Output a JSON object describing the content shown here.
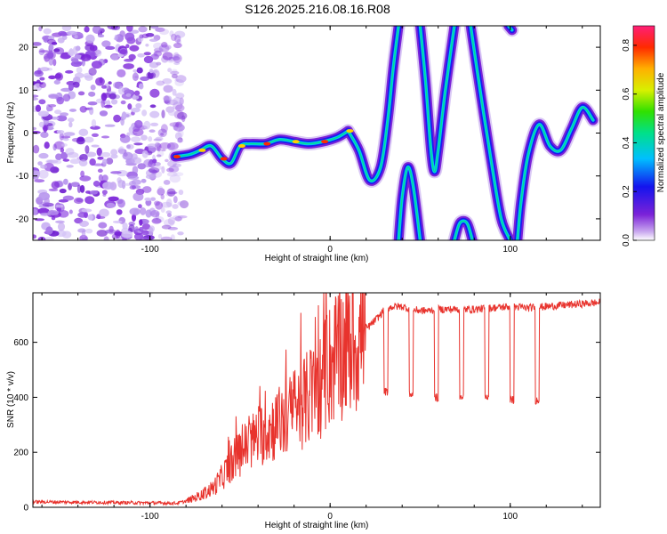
{
  "title": "S126.2025.216.08.16.R08",
  "colors": {
    "snr_line": "#e8332d",
    "frame": "#000000",
    "background": "#ffffff"
  },
  "chart_data": [
    {
      "type": "heatmap",
      "xlabel": "Height of straight line (km)",
      "ylabel": "Frequency (Hz)",
      "xlim": [
        -165,
        150
      ],
      "ylim": [
        -25,
        25
      ],
      "x_ticks": [
        -100,
        0,
        100
      ],
      "y_ticks": [
        -20,
        -10,
        0,
        10,
        20
      ],
      "colorbar": {
        "label": "Normalized spectral amplitude",
        "range": [
          0.0,
          0.88
        ],
        "ticks": [
          "0.0",
          "0.2",
          "0.4",
          "0.6",
          "0.8"
        ],
        "colormap": "rainbow (purple to red)"
      },
      "noise_region_x": [
        -165,
        -85
      ],
      "ridge": [
        {
          "x": -86,
          "y": -5.5
        },
        {
          "x": -78,
          "y": -5
        },
        {
          "x": -72,
          "y": -4
        },
        {
          "x": -66,
          "y": -3
        },
        {
          "x": -60,
          "y": -6
        },
        {
          "x": -55,
          "y": -7
        },
        {
          "x": -50,
          "y": -3
        },
        {
          "x": -44,
          "y": -2.5
        },
        {
          "x": -36,
          "y": -2.5
        },
        {
          "x": -28,
          "y": -1.5
        },
        {
          "x": -20,
          "y": -2
        },
        {
          "x": -12,
          "y": -2.5
        },
        {
          "x": -4,
          "y": -2
        },
        {
          "x": 4,
          "y": -1
        },
        {
          "x": 10,
          "y": 0.5
        }
      ],
      "branches": [
        [
          {
            "x": 10,
            "y": 0.5
          },
          {
            "x": 16,
            "y": -4
          },
          {
            "x": 22,
            "y": -11
          },
          {
            "x": 28,
            "y": -8
          },
          {
            "x": 32,
            "y": 3
          },
          {
            "x": 35,
            "y": 15
          },
          {
            "x": 38,
            "y": 25
          }
        ],
        [
          {
            "x": 38,
            "y": -25
          },
          {
            "x": 40,
            "y": -15
          },
          {
            "x": 43,
            "y": -8
          },
          {
            "x": 46,
            "y": -12
          },
          {
            "x": 50,
            "y": -25
          }
        ],
        [
          {
            "x": 50,
            "y": 25
          },
          {
            "x": 53,
            "y": 12
          },
          {
            "x": 56,
            "y": -4
          },
          {
            "x": 58,
            "y": -9
          },
          {
            "x": 60,
            "y": -4
          },
          {
            "x": 64,
            "y": 10
          },
          {
            "x": 69,
            "y": 25
          }
        ],
        [
          {
            "x": 69,
            "y": -25
          },
          {
            "x": 72,
            "y": -21
          },
          {
            "x": 76,
            "y": -21
          },
          {
            "x": 79,
            "y": -25
          }
        ],
        [
          {
            "x": 78,
            "y": 25
          },
          {
            "x": 84,
            "y": 8
          },
          {
            "x": 90,
            "y": -8
          },
          {
            "x": 95,
            "y": -20
          },
          {
            "x": 100,
            "y": -25
          }
        ],
        [
          {
            "x": 99,
            "y": 25
          },
          {
            "x": 101,
            "y": 24
          }
        ],
        [
          {
            "x": 104,
            "y": -25
          },
          {
            "x": 106,
            "y": -16
          },
          {
            "x": 110,
            "y": -5
          },
          {
            "x": 116,
            "y": 2
          },
          {
            "x": 122,
            "y": -3
          },
          {
            "x": 128,
            "y": -4
          },
          {
            "x": 134,
            "y": 1
          },
          {
            "x": 140,
            "y": 6
          },
          {
            "x": 146,
            "y": 3
          }
        ]
      ]
    },
    {
      "type": "line",
      "xlabel": "Height of straight line (km)",
      "ylabel": "SNR (10 * v/v)",
      "xlim": [
        -165,
        150
      ],
      "ylim": [
        0,
        780
      ],
      "x_ticks": [
        -100,
        0,
        100
      ],
      "y_ticks": [
        0,
        200,
        400,
        600
      ],
      "series": [
        {
          "x": [
            -165,
            -130,
            -100,
            -85,
            -80,
            -75,
            -70,
            -65,
            -60,
            -55,
            -50,
            -45,
            -40,
            -35,
            -30,
            -25,
            -20,
            -15,
            -10,
            -5,
            0,
            5,
            10,
            15,
            20,
            22,
            25,
            28,
            30,
            35,
            40,
            45,
            50,
            55,
            60,
            70,
            80,
            90,
            100,
            110,
            120,
            130,
            140,
            150
          ],
          "values": [
            20,
            18,
            16,
            15,
            22,
            35,
            50,
            70,
            110,
            160,
            200,
            230,
            260,
            280,
            300,
            320,
            350,
            380,
            410,
            450,
            520,
            560,
            580,
            600,
            650,
            660,
            680,
            700,
            720,
            730,
            730,
            720,
            715,
            715,
            720,
            720,
            720,
            725,
            730,
            725,
            730,
            735,
            740,
            745
          ]
        }
      ],
      "dropouts": [
        {
          "x": 31,
          "value": 420
        },
        {
          "x": 45,
          "value": 410
        },
        {
          "x": 59,
          "value": 400
        },
        {
          "x": 73,
          "value": 400
        },
        {
          "x": 87,
          "value": 400
        },
        {
          "x": 101,
          "value": 390
        },
        {
          "x": 115,
          "value": 390
        }
      ]
    }
  ]
}
